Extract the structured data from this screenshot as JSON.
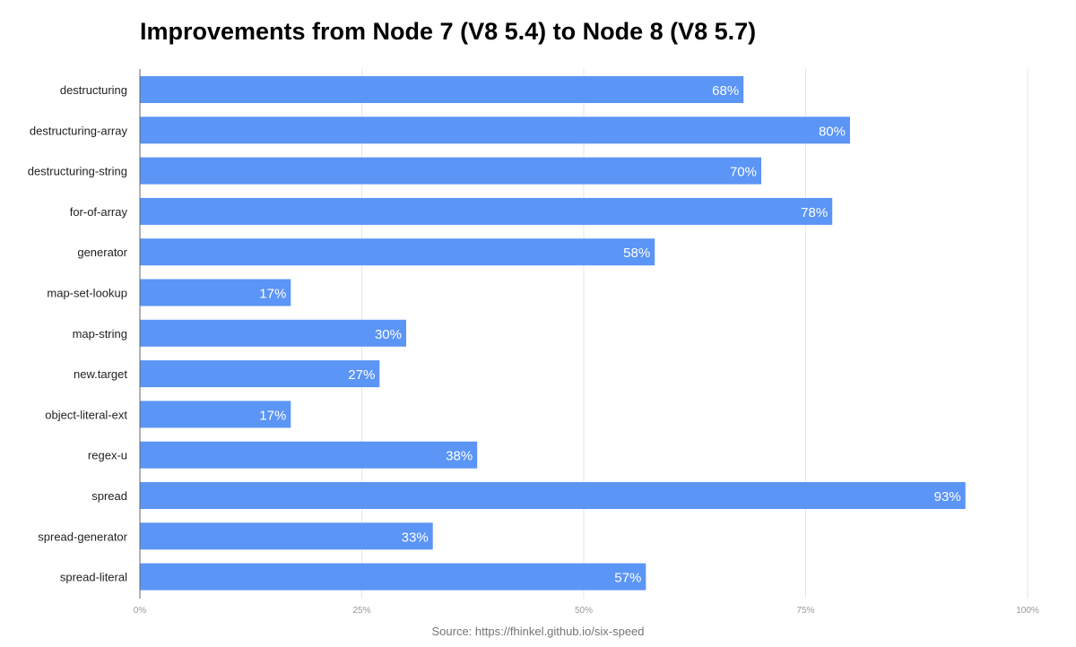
{
  "chart_data": {
    "type": "bar",
    "orientation": "horizontal",
    "title": "Improvements from Node 7 (V8 5.4) to Node 8 (V8 5.7)",
    "source": "Source: https://fhinkel.github.io/six-speed",
    "categories": [
      "destructuring",
      "destructuring-array",
      "destructuring-string",
      "for-of-array",
      "generator",
      "map-set-lookup",
      "map-string",
      "new.target",
      "object-literal-ext",
      "regex-u",
      "spread",
      "spread-generator",
      "spread-literal"
    ],
    "values": [
      68,
      80,
      70,
      78,
      58,
      17,
      30,
      27,
      17,
      38,
      93,
      33,
      57
    ],
    "value_labels": [
      "68%",
      "80%",
      "70%",
      "78%",
      "58%",
      "17%",
      "30%",
      "27%",
      "17%",
      "38%",
      "93%",
      "33%",
      "57%"
    ],
    "xlim": [
      0,
      100
    ],
    "ticks": [
      0,
      25,
      50,
      75,
      100
    ],
    "tick_labels": [
      "0%",
      "25%",
      "50%",
      "75%",
      "100%"
    ],
    "grid": true,
    "legend": "none",
    "bar_color": "#5b95f5",
    "grid_color": "#e6e6e6",
    "axis_color": "#666666"
  }
}
